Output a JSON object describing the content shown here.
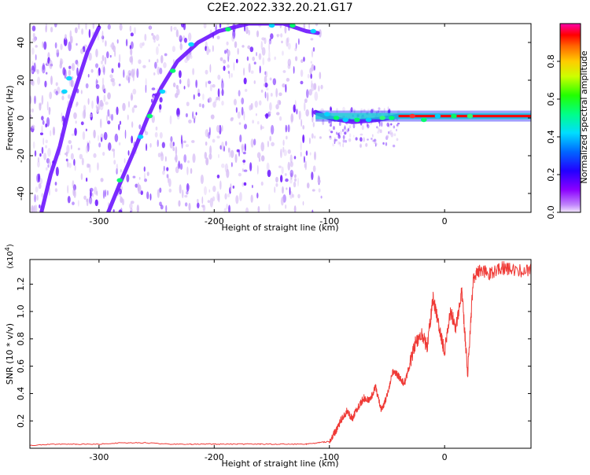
{
  "title": "C2E2.2022.332.20.21.G17",
  "colors": {
    "background": "#ffffff",
    "axis": "#000000",
    "snr_line": "#ef3a36",
    "zero_line": "#ff0000",
    "blob_purple": "#6b14ff",
    "blob_lavender": "#d6bcf5",
    "blob_blue": "#2b2bff",
    "blob_cyan": "#10e0d0",
    "blob_green": "#30e060",
    "blob_red": "#ff3030"
  },
  "chart_data": [
    {
      "type": "heatmap",
      "xlabel": "Height of straight line (km)",
      "ylabel": "Frequency (Hz)",
      "xlim": [
        -360,
        75
      ],
      "ylim": [
        -50,
        50
      ],
      "xticks": [
        -300,
        -200,
        -100,
        0
      ],
      "xtick_labels": [
        "-300",
        "-200",
        "-100",
        "0"
      ],
      "yticks": [
        -40,
        -20,
        0,
        20,
        40
      ],
      "ytick_labels": [
        "-40",
        "-20",
        "0",
        "20",
        "40"
      ],
      "grid": false,
      "colorbar": {
        "label": "Normalized spectral amplitude",
        "range": [
          0,
          1
        ],
        "ticks": [
          0.0,
          0.2,
          0.4,
          0.6,
          0.8
        ],
        "tick_labels": [
          "0.0",
          "0.2",
          "0.4",
          "0.6",
          "0.8"
        ]
      },
      "features": [
        {
          "label": "",
          "points": [
            [
              -350,
              -50
            ],
            [
              -342,
              -30
            ],
            [
              -334,
              -15
            ],
            [
              -326,
              5
            ],
            [
              -318,
              20
            ],
            [
              -310,
              35
            ],
            [
              -300,
              48
            ]
          ]
        },
        {
          "label": "",
          "points": [
            [
              -292,
              -50
            ],
            [
              -282,
              -35
            ],
            [
              -270,
              -18
            ],
            [
              -258,
              0
            ],
            [
              -246,
              16
            ],
            [
              -232,
              30
            ],
            [
              -214,
              40
            ],
            [
              -196,
              46
            ],
            [
              -170,
              50
            ],
            [
              -140,
              50
            ],
            [
              -120,
              46
            ],
            [
              -110,
              45
            ]
          ]
        },
        {
          "label": "",
          "points": [
            [
              -112,
              3
            ],
            [
              -100,
              0
            ],
            [
              -80,
              -2
            ],
            [
              -60,
              -1
            ],
            [
              -40,
              1
            ],
            [
              -20,
              1
            ],
            [
              0,
              1
            ],
            [
              20,
              1
            ],
            [
              40,
              1
            ],
            [
              60,
              1
            ],
            [
              75,
              1
            ]
          ]
        }
      ]
    },
    {
      "type": "line",
      "xlabel": "Height of straight line (km)",
      "ylabel": "SNR (10 * v/v)",
      "multiplier": "(x10",
      "multiplier_power": "4",
      "xlim": [
        -360,
        75
      ],
      "ylim": [
        0,
        1.38
      ],
      "xticks": [
        -300,
        -200,
        -100,
        0
      ],
      "xtick_labels": [
        "-300",
        "-200",
        "-100",
        "0"
      ],
      "yticks": [
        0.2,
        0.4,
        0.6,
        0.8,
        1.0,
        1.2
      ],
      "ytick_labels": [
        "0.2",
        "0.4",
        "0.6",
        "0.8",
        "1.0",
        "1.2"
      ],
      "grid": false,
      "series": [
        {
          "x": [
            -360,
            -340,
            -320,
            -300,
            -280,
            -260,
            -240,
            -220,
            -200,
            -180,
            -160,
            -140,
            -120,
            -110,
            -100,
            -95,
            -90,
            -85,
            -80,
            -75,
            -70,
            -65,
            -60,
            -55,
            -50,
            -45,
            -40,
            -35,
            -30,
            -25,
            -20,
            -15,
            -10,
            -5,
            0,
            5,
            10,
            15,
            20,
            25,
            30,
            40,
            50,
            60,
            75
          ],
          "values": [
            0.02,
            0.03,
            0.03,
            0.03,
            0.04,
            0.04,
            0.03,
            0.03,
            0.03,
            0.03,
            0.03,
            0.03,
            0.03,
            0.04,
            0.05,
            0.12,
            0.2,
            0.27,
            0.22,
            0.3,
            0.37,
            0.35,
            0.45,
            0.28,
            0.38,
            0.57,
            0.53,
            0.47,
            0.62,
            0.78,
            0.83,
            0.75,
            1.1,
            0.9,
            0.7,
            1.0,
            0.88,
            1.15,
            0.55,
            1.25,
            1.3,
            1.28,
            1.32,
            1.3,
            1.3
          ]
        }
      ]
    }
  ]
}
